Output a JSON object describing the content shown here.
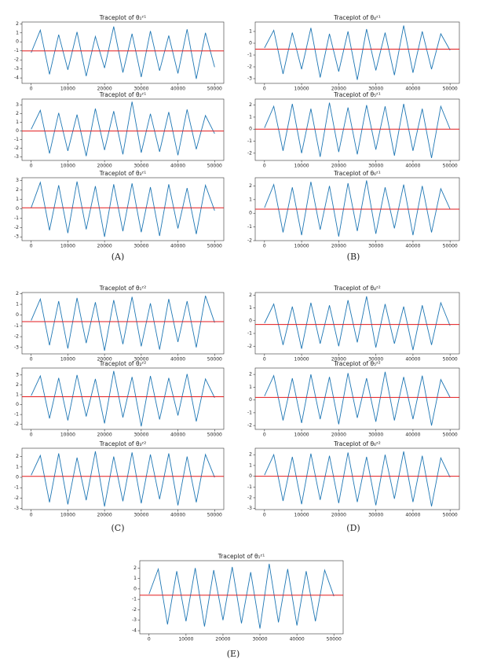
{
  "captions": [
    "(A)",
    "(B)",
    "(C)",
    "(D)",
    "(E)"
  ],
  "chart_data": [
    {
      "type": "line",
      "title": "Traceplot of θ₁ᶻ¹",
      "x": [
        0,
        2500,
        5000,
        7500,
        10000,
        12500,
        15000,
        17500,
        20000,
        22500,
        25000,
        27500,
        30000,
        32500,
        35000,
        37500,
        40000,
        42500,
        45000,
        47500,
        50000
      ],
      "series": [
        {
          "color": "#1f77b4",
          "values": [
            -1.2,
            1.3,
            -3.6,
            0.8,
            -3.1,
            1.1,
            -3.8,
            0.6,
            -2.9,
            1.7,
            -3.4,
            0.9,
            -3.9,
            1.2,
            -3.2,
            0.7,
            -3.5,
            1.4,
            -4.1,
            1.0,
            -2.8
          ]
        }
      ],
      "reference_line": {
        "value": -1,
        "color": "#e31a1c"
      },
      "xlim": [
        -2500,
        52500
      ],
      "xticks": [
        0,
        10000,
        20000,
        30000,
        40000,
        50000
      ],
      "ylim": [
        -4.6,
        2.2
      ],
      "yticks": [
        -4,
        -3,
        -2,
        -1,
        0,
        1,
        2
      ]
    },
    {
      "type": "line",
      "title": "Traceplot of θ₂ᶻ¹",
      "x": [
        0,
        2500,
        5000,
        7500,
        10000,
        12500,
        15000,
        17500,
        20000,
        22500,
        25000,
        27500,
        30000,
        32500,
        35000,
        37500,
        40000,
        42500,
        45000,
        47500,
        50000
      ],
      "series": [
        {
          "color": "#1f77b4",
          "values": [
            0.2,
            2.4,
            -2.6,
            2.1,
            -2.3,
            1.9,
            -2.9,
            2.6,
            -2.2,
            2.3,
            -2.7,
            3.4,
            -2.5,
            2.0,
            -2.4,
            2.2,
            -2.8,
            2.5,
            -2.1,
            1.8,
            -0.3
          ]
        }
      ],
      "reference_line": {
        "value": 0,
        "color": "#e31a1c"
      },
      "xlim": [
        -2500,
        52500
      ],
      "xticks": [
        0,
        10000,
        20000,
        30000,
        40000,
        50000
      ],
      "ylim": [
        -3.4,
        3.7
      ],
      "yticks": [
        -3,
        -2,
        -1,
        0,
        1,
        2,
        3
      ]
    },
    {
      "type": "line",
      "title": "Traceplot of θ₃ᶻ¹",
      "x": [
        0,
        2500,
        5000,
        7500,
        10000,
        12500,
        15000,
        17500,
        20000,
        22500,
        25000,
        27500,
        30000,
        32500,
        35000,
        37500,
        40000,
        42500,
        45000,
        47500,
        50000
      ],
      "series": [
        {
          "color": "#1f77b4",
          "values": [
            0.1,
            2.8,
            -2.3,
            2.5,
            -2.6,
            2.9,
            -2.2,
            2.4,
            -3.0,
            2.6,
            -2.4,
            2.7,
            -2.5,
            2.3,
            -2.9,
            2.6,
            -2.1,
            2.2,
            -2.7,
            2.5,
            -0.2
          ]
        }
      ],
      "reference_line": {
        "value": 0.1,
        "color": "#e31a1c"
      },
      "xlim": [
        -2500,
        52500
      ],
      "xticks": [
        0,
        10000,
        20000,
        30000,
        40000,
        50000
      ],
      "ylim": [
        -3.4,
        3.3
      ],
      "yticks": [
        -3,
        -2,
        -1,
        0,
        1,
        2,
        3
      ]
    },
    {
      "type": "line",
      "title": "Traceplot of θ₄ᶻ¹",
      "x": [
        0,
        2500,
        5000,
        7500,
        10000,
        12500,
        15000,
        17500,
        20000,
        22500,
        25000,
        27500,
        30000,
        32500,
        35000,
        37500,
        40000,
        42500,
        45000,
        47500,
        50000
      ],
      "series": [
        {
          "color": "#1f77b4",
          "values": [
            -0.4,
            1.1,
            -2.6,
            0.9,
            -2.2,
            1.3,
            -2.9,
            0.8,
            -2.4,
            1.0,
            -3.1,
            1.2,
            -2.3,
            0.9,
            -2.7,
            1.5,
            -2.5,
            1.0,
            -2.2,
            0.8,
            -0.6
          ]
        }
      ],
      "reference_line": {
        "value": -0.5,
        "color": "#e31a1c"
      },
      "xlim": [
        -2500,
        52500
      ],
      "xticks": [
        0,
        10000,
        20000,
        30000,
        40000,
        50000
      ],
      "ylim": [
        -3.4,
        1.8
      ],
      "yticks": [
        -3,
        -2,
        -1,
        0,
        1
      ]
    },
    {
      "type": "line",
      "title": "Traceplot of θ₅ᶻ¹",
      "x": [
        0,
        2500,
        5000,
        7500,
        10000,
        12500,
        15000,
        17500,
        20000,
        22500,
        25000,
        27500,
        30000,
        32500,
        35000,
        37500,
        40000,
        42500,
        45000,
        47500,
        50000
      ],
      "series": [
        {
          "color": "#1f77b4",
          "values": [
            0.1,
            1.9,
            -1.8,
            2.1,
            -2.0,
            1.7,
            -2.3,
            2.2,
            -1.9,
            1.8,
            -2.1,
            2.0,
            -1.7,
            1.9,
            -2.2,
            2.1,
            -1.8,
            1.7,
            -2.4,
            1.9,
            0.0
          ]
        }
      ],
      "reference_line": {
        "value": 0,
        "color": "#e31a1c"
      },
      "xlim": [
        -2500,
        52500
      ],
      "xticks": [
        0,
        10000,
        20000,
        30000,
        40000,
        50000
      ],
      "ylim": [
        -2.6,
        2.5
      ],
      "yticks": [
        -2,
        -1,
        0,
        1,
        2
      ]
    },
    {
      "type": "line",
      "title": "Traceplot of θ₆ᶻ¹",
      "x": [
        0,
        2500,
        5000,
        7500,
        10000,
        12500,
        15000,
        17500,
        20000,
        22500,
        25000,
        27500,
        30000,
        32500,
        35000,
        37500,
        40000,
        42500,
        45000,
        47500,
        50000
      ],
      "series": [
        {
          "color": "#1f77b4",
          "values": [
            0.4,
            2.1,
            -1.4,
            1.9,
            -1.6,
            2.3,
            -1.2,
            2.0,
            -1.7,
            2.2,
            -1.3,
            2.4,
            -1.5,
            1.9,
            -1.1,
            2.1,
            -1.6,
            2.0,
            -1.4,
            1.8,
            0.3
          ]
        }
      ],
      "reference_line": {
        "value": 0.3,
        "color": "#e31a1c"
      },
      "xlim": [
        -2500,
        52500
      ],
      "xticks": [
        0,
        10000,
        20000,
        30000,
        40000,
        50000
      ],
      "ylim": [
        -2.0,
        2.6
      ],
      "yticks": [
        -2,
        -1,
        0,
        1,
        2
      ]
    },
    {
      "type": "line",
      "title": "Traceplot of θ₁ᶻ²",
      "x": [
        0,
        2500,
        5000,
        7500,
        10000,
        12500,
        15000,
        17500,
        20000,
        22500,
        25000,
        27500,
        30000,
        32500,
        35000,
        37500,
        40000,
        42500,
        45000,
        47500,
        50000
      ],
      "series": [
        {
          "color": "#1f77b4",
          "values": [
            -0.5,
            1.5,
            -2.8,
            1.3,
            -3.1,
            1.6,
            -2.6,
            1.2,
            -3.3,
            1.4,
            -2.7,
            1.7,
            -2.9,
            1.1,
            -3.2,
            1.5,
            -2.5,
            1.3,
            -3.0,
            1.8,
            -0.7
          ]
        }
      ],
      "reference_line": {
        "value": -0.6,
        "color": "#e31a1c"
      },
      "xlim": [
        -2500,
        52500
      ],
      "xticks": [
        0,
        10000,
        20000,
        30000,
        40000,
        50000
      ],
      "ylim": [
        -3.6,
        2.1
      ],
      "yticks": [
        -3,
        -2,
        -1,
        0,
        1,
        2
      ]
    },
    {
      "type": "line",
      "title": "Traceplot of θ₂ᶻ²",
      "x": [
        0,
        2500,
        5000,
        7500,
        10000,
        12500,
        15000,
        17500,
        20000,
        22500,
        25000,
        27500,
        30000,
        32500,
        35000,
        37500,
        40000,
        42500,
        45000,
        47500,
        50000
      ],
      "series": [
        {
          "color": "#1f77b4",
          "values": [
            0.9,
            2.9,
            -1.4,
            2.7,
            -1.6,
            3.0,
            -1.2,
            2.6,
            -1.9,
            3.4,
            -1.3,
            2.8,
            -2.2,
            2.9,
            -1.5,
            2.7,
            -1.1,
            3.1,
            -1.7,
            2.6,
            0.7
          ]
        }
      ],
      "reference_line": {
        "value": 0.8,
        "color": "#e31a1c"
      },
      "xlim": [
        -2500,
        52500
      ],
      "xticks": [
        0,
        10000,
        20000,
        30000,
        40000,
        50000
      ],
      "ylim": [
        -2.5,
        3.7
      ],
      "yticks": [
        -2,
        -1,
        0,
        1,
        2,
        3
      ]
    },
    {
      "type": "line",
      "title": "Traceplot of θ₃ᶻ²",
      "x": [
        0,
        2500,
        5000,
        7500,
        10000,
        12500,
        15000,
        17500,
        20000,
        22500,
        25000,
        27500,
        30000,
        32500,
        35000,
        37500,
        40000,
        42500,
        45000,
        47500,
        50000
      ],
      "series": [
        {
          "color": "#1f77b4",
          "values": [
            0.2,
            2.1,
            -2.4,
            2.3,
            -2.6,
            1.9,
            -2.2,
            2.5,
            -2.8,
            2.0,
            -2.3,
            2.4,
            -2.5,
            2.2,
            -2.1,
            2.3,
            -2.7,
            2.0,
            -2.4,
            2.2,
            0.0
          ]
        }
      ],
      "reference_line": {
        "value": 0.1,
        "color": "#e31a1c"
      },
      "xlim": [
        -2500,
        52500
      ],
      "xticks": [
        0,
        10000,
        20000,
        30000,
        40000,
        50000
      ],
      "ylim": [
        -3.1,
        2.8
      ],
      "yticks": [
        -3,
        -2,
        -1,
        0,
        1,
        2
      ]
    },
    {
      "type": "line",
      "title": "Traceplot of θ₄ᶻ²",
      "x": [
        0,
        2500,
        5000,
        7500,
        10000,
        12500,
        15000,
        17500,
        20000,
        22500,
        25000,
        27500,
        30000,
        32500,
        35000,
        37500,
        40000,
        42500,
        45000,
        47500,
        50000
      ],
      "series": [
        {
          "color": "#1f77b4",
          "values": [
            -0.2,
            1.3,
            -1.9,
            1.1,
            -2.2,
            1.4,
            -1.8,
            1.2,
            -2.0,
            1.6,
            -1.7,
            1.9,
            -2.1,
            1.3,
            -1.8,
            1.1,
            -2.3,
            1.2,
            -1.9,
            1.4,
            -0.4
          ]
        }
      ],
      "reference_line": {
        "value": -0.3,
        "color": "#e31a1c"
      },
      "xlim": [
        -2500,
        52500
      ],
      "xticks": [
        0,
        10000,
        20000,
        30000,
        40000,
        50000
      ],
      "ylim": [
        -2.6,
        2.2
      ],
      "yticks": [
        -2,
        -1,
        0,
        1,
        2
      ]
    },
    {
      "type": "line",
      "title": "Traceplot of θ₅ᶻ²",
      "x": [
        0,
        2500,
        5000,
        7500,
        10000,
        12500,
        15000,
        17500,
        20000,
        22500,
        25000,
        27500,
        30000,
        32500,
        35000,
        37500,
        40000,
        42500,
        45000,
        47500,
        50000
      ],
      "series": [
        {
          "color": "#1f77b4",
          "values": [
            0.3,
            1.9,
            -1.6,
            1.7,
            -1.8,
            2.0,
            -1.5,
            1.8,
            -1.9,
            2.1,
            -1.4,
            1.7,
            -1.7,
            2.2,
            -1.6,
            1.8,
            -1.5,
            1.9,
            -2.0,
            1.6,
            0.2
          ]
        }
      ],
      "reference_line": {
        "value": 0.2,
        "color": "#e31a1c"
      },
      "xlim": [
        -2500,
        52500
      ],
      "xticks": [
        0,
        10000,
        20000,
        30000,
        40000,
        50000
      ],
      "ylim": [
        -2.3,
        2.5
      ],
      "yticks": [
        -2,
        -1,
        0,
        1,
        2
      ]
    },
    {
      "type": "line",
      "title": "Traceplot of θ₆ᶻ²",
      "x": [
        0,
        2500,
        5000,
        7500,
        10000,
        12500,
        15000,
        17500,
        20000,
        22500,
        25000,
        27500,
        30000,
        32500,
        35000,
        37500,
        40000,
        42500,
        45000,
        47500,
        50000
      ],
      "series": [
        {
          "color": "#1f77b4",
          "values": [
            0.1,
            2.0,
            -2.3,
            1.8,
            -2.6,
            2.1,
            -2.2,
            1.9,
            -2.5,
            2.2,
            -2.4,
            1.8,
            -2.7,
            2.0,
            -2.1,
            2.3,
            -2.4,
            1.9,
            -2.8,
            1.7,
            -0.1
          ]
        }
      ],
      "reference_line": {
        "value": 0,
        "color": "#e31a1c"
      },
      "xlim": [
        -2500,
        52500
      ],
      "xticks": [
        0,
        10000,
        20000,
        30000,
        40000,
        50000
      ],
      "ylim": [
        -3.1,
        2.6
      ],
      "yticks": [
        -3,
        -2,
        -1,
        0,
        1,
        2
      ]
    },
    {
      "type": "line",
      "title": "Traceplot of θ₁ᶻ¹",
      "x": [
        0,
        2500,
        5000,
        7500,
        10000,
        12500,
        15000,
        17500,
        20000,
        22500,
        25000,
        27500,
        30000,
        32500,
        35000,
        37500,
        40000,
        42500,
        45000,
        47500,
        50000
      ],
      "series": [
        {
          "color": "#1f77b4",
          "values": [
            -0.5,
            1.9,
            -3.4,
            1.7,
            -3.1,
            2.0,
            -3.6,
            1.8,
            -3.0,
            2.1,
            -3.3,
            1.6,
            -3.8,
            2.4,
            -3.2,
            1.9,
            -3.5,
            1.7,
            -3.1,
            1.8,
            -0.7
          ]
        }
      ],
      "reference_line": {
        "value": -0.6,
        "color": "#e31a1c"
      },
      "xlim": [
        -2500,
        52500
      ],
      "xticks": [
        0,
        10000,
        20000,
        30000,
        40000,
        50000
      ],
      "ylim": [
        -4.3,
        2.7
      ],
      "yticks": [
        -4,
        -3,
        -2,
        -1,
        0,
        1,
        2
      ]
    }
  ]
}
